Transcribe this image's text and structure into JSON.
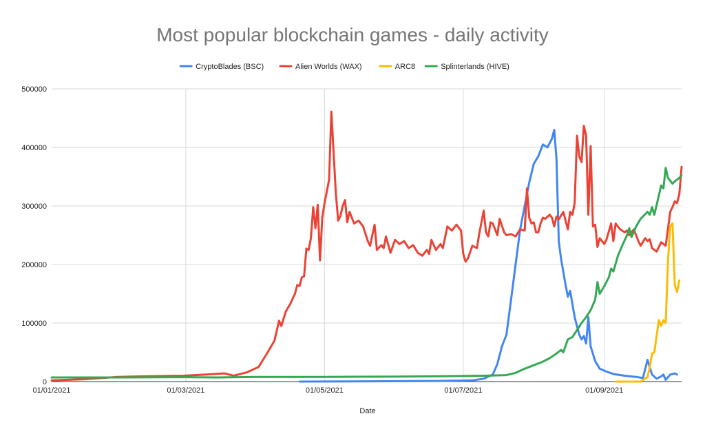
{
  "chart_data": {
    "type": "line",
    "title": "Most popular blockchain games - daily activity",
    "xlabel": "Date",
    "ylabel": "",
    "ylim": [
      0,
      500000
    ],
    "xlim": [
      "2021-01-01",
      "2021-10-05"
    ],
    "yticks": [
      0,
      100000,
      200000,
      300000,
      400000,
      500000
    ],
    "ytick_labels": [
      "0",
      "100000",
      "200000",
      "300000",
      "400000",
      "500000"
    ],
    "xticks": [
      "2021-01-01",
      "2021-03-01",
      "2021-05-01",
      "2021-07-01",
      "2021-09-01"
    ],
    "xtick_labels": [
      "01/01/2021",
      "01/03/2021",
      "01/05/2021",
      "01/07/2021",
      "01/09/2021"
    ],
    "grid": true,
    "legend_position": "top",
    "series": [
      {
        "name": "CryptoBlades (BSC)",
        "color": "#4285f4",
        "points": [
          [
            "2021-04-20",
            0
          ],
          [
            "2021-05-20",
            500
          ],
          [
            "2021-06-20",
            1000
          ],
          [
            "2021-07-05",
            2000
          ],
          [
            "2021-07-10",
            5000
          ],
          [
            "2021-07-14",
            12000
          ],
          [
            "2021-07-16",
            30000
          ],
          [
            "2021-07-18",
            60000
          ],
          [
            "2021-07-20",
            80000
          ],
          [
            "2021-07-22",
            140000
          ],
          [
            "2021-07-24",
            200000
          ],
          [
            "2021-07-26",
            260000
          ],
          [
            "2021-07-28",
            300000
          ],
          [
            "2021-07-30",
            340000
          ],
          [
            "2021-08-01",
            372000
          ],
          [
            "2021-08-03",
            385000
          ],
          [
            "2021-08-05",
            405000
          ],
          [
            "2021-08-07",
            400000
          ],
          [
            "2021-08-09",
            415000
          ],
          [
            "2021-08-10",
            430000
          ],
          [
            "2021-08-11",
            380000
          ],
          [
            "2021-08-12",
            240000
          ],
          [
            "2021-08-13",
            210000
          ],
          [
            "2021-08-15",
            165000
          ],
          [
            "2021-08-16",
            145000
          ],
          [
            "2021-08-17",
            155000
          ],
          [
            "2021-08-19",
            110000
          ],
          [
            "2021-08-21",
            80000
          ],
          [
            "2021-08-22",
            72000
          ],
          [
            "2021-08-23",
            78000
          ],
          [
            "2021-08-24",
            65000
          ],
          [
            "2021-08-25",
            110000
          ],
          [
            "2021-08-26",
            60000
          ],
          [
            "2021-08-28",
            35000
          ],
          [
            "2021-08-30",
            22000
          ],
          [
            "2021-09-02",
            17000
          ],
          [
            "2021-09-05",
            13000
          ],
          [
            "2021-09-10",
            10000
          ],
          [
            "2021-09-15",
            8000
          ],
          [
            "2021-09-18",
            6000
          ],
          [
            "2021-09-20",
            37000
          ],
          [
            "2021-09-22",
            12000
          ],
          [
            "2021-09-24",
            5000
          ],
          [
            "2021-09-26",
            9000
          ],
          [
            "2021-09-27",
            12000
          ],
          [
            "2021-09-28",
            3000
          ],
          [
            "2021-09-30",
            12000
          ],
          [
            "2021-10-02",
            14000
          ],
          [
            "2021-10-03",
            12000
          ]
        ]
      },
      {
        "name": "Alien Worlds (WAX)",
        "color": "#ea4335",
        "points": [
          [
            "2021-01-01",
            2000
          ],
          [
            "2021-01-15",
            4000
          ],
          [
            "2021-01-30",
            8000
          ],
          [
            "2021-02-10",
            9000
          ],
          [
            "2021-02-28",
            10000
          ],
          [
            "2021-03-10",
            12000
          ],
          [
            "2021-03-18",
            14000
          ],
          [
            "2021-03-22",
            10000
          ],
          [
            "2021-03-28",
            16000
          ],
          [
            "2021-04-02",
            25000
          ],
          [
            "2021-04-06",
            50000
          ],
          [
            "2021-04-09",
            70000
          ],
          [
            "2021-04-11",
            104000
          ],
          [
            "2021-04-12",
            95000
          ],
          [
            "2021-04-14",
            120000
          ],
          [
            "2021-04-16",
            133000
          ],
          [
            "2021-04-18",
            150000
          ],
          [
            "2021-04-19",
            165000
          ],
          [
            "2021-04-20",
            163000
          ],
          [
            "2021-04-21",
            178000
          ],
          [
            "2021-04-22",
            180000
          ],
          [
            "2021-04-23",
            227000
          ],
          [
            "2021-04-24",
            225000
          ],
          [
            "2021-04-25",
            245000
          ],
          [
            "2021-04-26",
            298000
          ],
          [
            "2021-04-27",
            262000
          ],
          [
            "2021-04-28",
            302000
          ],
          [
            "2021-04-29",
            207000
          ],
          [
            "2021-04-30",
            280000
          ],
          [
            "2021-05-01",
            305000
          ],
          [
            "2021-05-03",
            345000
          ],
          [
            "2021-05-04",
            461000
          ],
          [
            "2021-05-05",
            390000
          ],
          [
            "2021-05-06",
            320000
          ],
          [
            "2021-05-07",
            275000
          ],
          [
            "2021-05-08",
            283000
          ],
          [
            "2021-05-09",
            300000
          ],
          [
            "2021-05-10",
            310000
          ],
          [
            "2021-05-11",
            272000
          ],
          [
            "2021-05-12",
            290000
          ],
          [
            "2021-05-14",
            270000
          ],
          [
            "2021-05-16",
            275000
          ],
          [
            "2021-05-18",
            265000
          ],
          [
            "2021-05-20",
            240000
          ],
          [
            "2021-05-21",
            232000
          ],
          [
            "2021-05-23",
            268000
          ],
          [
            "2021-05-24",
            225000
          ],
          [
            "2021-05-26",
            233000
          ],
          [
            "2021-05-27",
            228000
          ],
          [
            "2021-05-28",
            248000
          ],
          [
            "2021-05-30",
            220000
          ],
          [
            "2021-06-01",
            242000
          ],
          [
            "2021-06-03",
            235000
          ],
          [
            "2021-06-05",
            240000
          ],
          [
            "2021-06-07",
            228000
          ],
          [
            "2021-06-09",
            233000
          ],
          [
            "2021-06-11",
            220000
          ],
          [
            "2021-06-13",
            215000
          ],
          [
            "2021-06-15",
            225000
          ],
          [
            "2021-06-16",
            218000
          ],
          [
            "2021-06-17",
            242000
          ],
          [
            "2021-06-19",
            225000
          ],
          [
            "2021-06-21",
            235000
          ],
          [
            "2021-06-22",
            228000
          ],
          [
            "2021-06-24",
            265000
          ],
          [
            "2021-06-26",
            258000
          ],
          [
            "2021-06-28",
            268000
          ],
          [
            "2021-06-30",
            258000
          ],
          [
            "2021-07-01",
            218000
          ],
          [
            "2021-07-02",
            205000
          ],
          [
            "2021-07-03",
            210000
          ],
          [
            "2021-07-05",
            232000
          ],
          [
            "2021-07-07",
            228000
          ],
          [
            "2021-07-08",
            252000
          ],
          [
            "2021-07-10",
            292000
          ],
          [
            "2021-07-11",
            255000
          ],
          [
            "2021-07-12",
            248000
          ],
          [
            "2021-07-13",
            272000
          ],
          [
            "2021-07-14",
            270000
          ],
          [
            "2021-07-16",
            250000
          ],
          [
            "2021-07-17",
            278000
          ],
          [
            "2021-07-19",
            255000
          ],
          [
            "2021-07-20",
            250000
          ],
          [
            "2021-07-22",
            252000
          ],
          [
            "2021-07-24",
            248000
          ],
          [
            "2021-07-26",
            260000
          ],
          [
            "2021-07-28",
            258000
          ],
          [
            "2021-07-29",
            330000
          ],
          [
            "2021-07-30",
            280000
          ],
          [
            "2021-07-31",
            270000
          ],
          [
            "2021-08-01",
            272000
          ],
          [
            "2021-08-02",
            255000
          ],
          [
            "2021-08-03",
            255000
          ],
          [
            "2021-08-04",
            270000
          ],
          [
            "2021-08-05",
            280000
          ],
          [
            "2021-08-06",
            278000
          ],
          [
            "2021-08-08",
            285000
          ],
          [
            "2021-08-09",
            280000
          ],
          [
            "2021-08-10",
            265000
          ],
          [
            "2021-08-11",
            282000
          ],
          [
            "2021-08-12",
            277000
          ],
          [
            "2021-08-14",
            290000
          ],
          [
            "2021-08-15",
            275000
          ],
          [
            "2021-08-16",
            260000
          ],
          [
            "2021-08-17",
            290000
          ],
          [
            "2021-08-18",
            285000
          ],
          [
            "2021-08-19",
            305000
          ],
          [
            "2021-08-20",
            420000
          ],
          [
            "2021-08-21",
            385000
          ],
          [
            "2021-08-22",
            375000
          ],
          [
            "2021-08-23",
            437000
          ],
          [
            "2021-08-24",
            420000
          ],
          [
            "2021-08-25",
            285000
          ],
          [
            "2021-08-26",
            402000
          ],
          [
            "2021-08-27",
            265000
          ],
          [
            "2021-08-28",
            268000
          ],
          [
            "2021-08-29",
            230000
          ],
          [
            "2021-08-30",
            245000
          ],
          [
            "2021-09-01",
            235000
          ],
          [
            "2021-09-02",
            243000
          ],
          [
            "2021-09-04",
            270000
          ],
          [
            "2021-09-05",
            240000
          ],
          [
            "2021-09-06",
            270000
          ],
          [
            "2021-09-08",
            260000
          ],
          [
            "2021-09-10",
            255000
          ],
          [
            "2021-09-11",
            258000
          ],
          [
            "2021-09-12",
            250000
          ],
          [
            "2021-09-14",
            260000
          ],
          [
            "2021-09-16",
            240000
          ],
          [
            "2021-09-17",
            232000
          ],
          [
            "2021-09-19",
            245000
          ],
          [
            "2021-09-20",
            240000
          ],
          [
            "2021-09-21",
            243000
          ],
          [
            "2021-09-22",
            228000
          ],
          [
            "2021-09-24",
            222000
          ],
          [
            "2021-09-26",
            238000
          ],
          [
            "2021-09-28",
            232000
          ],
          [
            "2021-09-30",
            290000
          ],
          [
            "2021-10-01",
            298000
          ],
          [
            "2021-10-02",
            308000
          ],
          [
            "2021-10-03",
            305000
          ],
          [
            "2021-10-04",
            320000
          ],
          [
            "2021-10-05",
            367000
          ]
        ]
      },
      {
        "name": "ARC8",
        "color": "#fbbc04",
        "points": [
          [
            "2021-09-06",
            0
          ],
          [
            "2021-09-17",
            0
          ],
          [
            "2021-09-20",
            8000
          ],
          [
            "2021-09-21",
            25000
          ],
          [
            "2021-09-22",
            48000
          ],
          [
            "2021-09-23",
            50000
          ],
          [
            "2021-09-24",
            78000
          ],
          [
            "2021-09-25",
            105000
          ],
          [
            "2021-09-26",
            95000
          ],
          [
            "2021-09-27",
            105000
          ],
          [
            "2021-09-28",
            100000
          ],
          [
            "2021-09-29",
            205000
          ],
          [
            "2021-09-30",
            265000
          ],
          [
            "2021-10-01",
            270000
          ],
          [
            "2021-10-02",
            165000
          ],
          [
            "2021-10-03",
            153000
          ],
          [
            "2021-10-04",
            173000
          ]
        ]
      },
      {
        "name": "Splinterlands  (HIVE)",
        "color": "#34a853",
        "points": [
          [
            "2021-01-01",
            7000
          ],
          [
            "2021-02-01",
            7000
          ],
          [
            "2021-03-01",
            7500
          ],
          [
            "2021-03-15",
            7000
          ],
          [
            "2021-04-01",
            8000
          ],
          [
            "2021-05-01",
            8000
          ],
          [
            "2021-06-01",
            8500
          ],
          [
            "2021-06-15",
            9000
          ],
          [
            "2021-07-01",
            9500
          ],
          [
            "2021-07-10",
            10000
          ],
          [
            "2021-07-20",
            11000
          ],
          [
            "2021-07-24",
            15000
          ],
          [
            "2021-07-28",
            22000
          ],
          [
            "2021-08-01",
            28000
          ],
          [
            "2021-08-05",
            34000
          ],
          [
            "2021-08-08",
            40000
          ],
          [
            "2021-08-11",
            48000
          ],
          [
            "2021-08-13",
            54000
          ],
          [
            "2021-08-14",
            50000
          ],
          [
            "2021-08-16",
            72000
          ],
          [
            "2021-08-18",
            76000
          ],
          [
            "2021-08-20",
            88000
          ],
          [
            "2021-08-22",
            100000
          ],
          [
            "2021-08-24",
            110000
          ],
          [
            "2021-08-26",
            122000
          ],
          [
            "2021-08-28",
            140000
          ],
          [
            "2021-08-29",
            170000
          ],
          [
            "2021-08-30",
            150000
          ],
          [
            "2021-09-01",
            163000
          ],
          [
            "2021-09-03",
            178000
          ],
          [
            "2021-09-04",
            193000
          ],
          [
            "2021-09-05",
            188000
          ],
          [
            "2021-09-07",
            215000
          ],
          [
            "2021-09-09",
            233000
          ],
          [
            "2021-09-11",
            250000
          ],
          [
            "2021-09-12",
            262000
          ],
          [
            "2021-09-13",
            247000
          ],
          [
            "2021-09-15",
            265000
          ],
          [
            "2021-09-17",
            278000
          ],
          [
            "2021-09-18",
            282000
          ],
          [
            "2021-09-20",
            290000
          ],
          [
            "2021-09-21",
            285000
          ],
          [
            "2021-09-22",
            298000
          ],
          [
            "2021-09-23",
            285000
          ],
          [
            "2021-09-25",
            318000
          ],
          [
            "2021-09-26",
            335000
          ],
          [
            "2021-09-27",
            330000
          ],
          [
            "2021-09-28",
            365000
          ],
          [
            "2021-09-29",
            348000
          ],
          [
            "2021-10-01",
            338000
          ],
          [
            "2021-10-02",
            342000
          ],
          [
            "2021-10-04",
            348000
          ],
          [
            "2021-10-05",
            352000
          ]
        ]
      }
    ]
  }
}
